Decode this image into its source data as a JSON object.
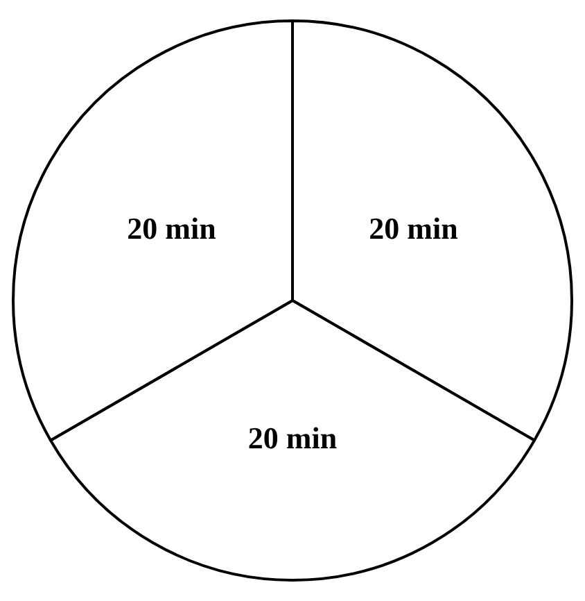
{
  "chart_data": {
    "type": "pie",
    "categories": [
      null,
      null,
      null
    ],
    "values": [
      20,
      20,
      20
    ],
    "colors": [
      "#ffffff",
      "#ffffff",
      "#ffffff"
    ],
    "value_labels": [
      "20 min",
      "20 min",
      "20 min"
    ]
  }
}
